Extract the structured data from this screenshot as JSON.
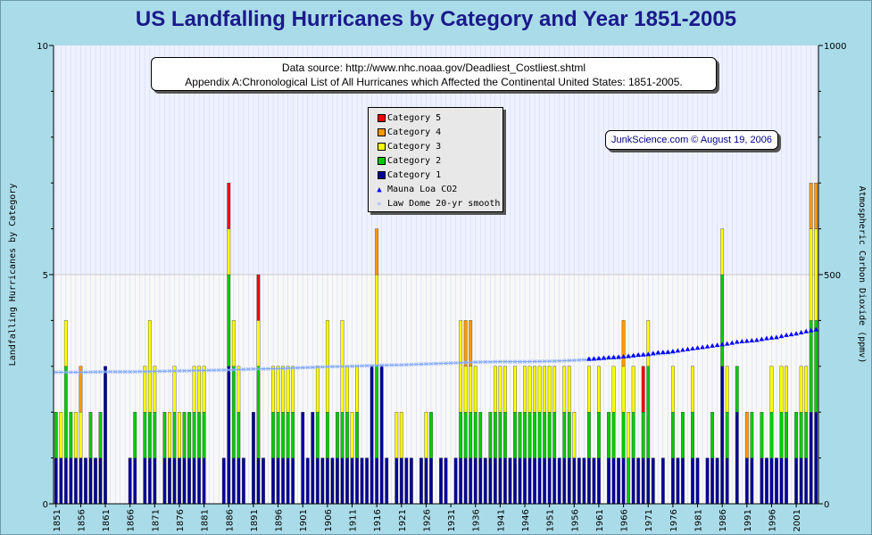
{
  "colors": {
    "category_5": "#ff0000",
    "category_4": "#ff9900",
    "category_3": "#ffff00",
    "category_2": "#00cc00",
    "category_1": "#000099",
    "mauna_loa": "#0000ff",
    "law_dome": "#7fa8ff",
    "upper_band": "#eef1ff",
    "lower_band": "#f8f8f8"
  },
  "source_box": {
    "line1": "Data source: http://www.nhc.noaa.gov/Deadliest_Costliest.shtml",
    "line2": "Appendix A:Chronological List of All Hurricanes which Affected the Continental United States: 1851-2005."
  },
  "credit": "JunkScience.com © August 19, 2006",
  "legend": {
    "items": [
      {
        "label": "Category 5",
        "color_key": "category_5",
        "kind": "swatch"
      },
      {
        "label": "Category 4",
        "color_key": "category_4",
        "kind": "swatch"
      },
      {
        "label": "Category 3",
        "color_key": "category_3",
        "kind": "swatch"
      },
      {
        "label": "Category 2",
        "color_key": "category_2",
        "kind": "swatch"
      },
      {
        "label": "Category 1",
        "color_key": "category_1",
        "kind": "swatch"
      },
      {
        "label": "Mauna Loa CO2",
        "color_key": "mauna_loa",
        "kind": "triangle"
      },
      {
        "label": "Law Dome 20-yr smooth",
        "color_key": "law_dome",
        "kind": "star"
      }
    ]
  },
  "chart_data": {
    "type": "bar",
    "title": "US Landfalling Hurricanes by Category and Year 1851-2005",
    "ylabel": "Landfalling Hurricanes by Category",
    "y2label": "Atmospheric Carbon Dioxide (ppmv)",
    "ylim": [
      0,
      10
    ],
    "y2lim": [
      0,
      1000
    ],
    "yticks": [
      "0",
      "5",
      "10"
    ],
    "y2ticks": [
      "0",
      "500",
      "1000"
    ],
    "stacked": true,
    "legend_position": "top-center",
    "x_tick_labels": [
      "1851",
      "1856",
      "1861",
      "1866",
      "1871",
      "1876",
      "1881",
      "1886",
      "1891",
      "1896",
      "1901",
      "1906",
      "1911",
      "1916",
      "1921",
      "1926",
      "1931",
      "1936",
      "1941",
      "1946",
      "1951",
      "1956",
      "1961",
      "1966",
      "1971",
      "1976",
      "1981",
      "1986",
      "1991",
      "1996",
      "2001"
    ],
    "years": [
      1851,
      1852,
      1853,
      1854,
      1855,
      1856,
      1857,
      1858,
      1859,
      1860,
      1861,
      1862,
      1863,
      1864,
      1865,
      1866,
      1867,
      1868,
      1869,
      1870,
      1871,
      1872,
      1873,
      1874,
      1875,
      1876,
      1877,
      1878,
      1879,
      1880,
      1881,
      1882,
      1883,
      1884,
      1885,
      1886,
      1887,
      1888,
      1889,
      1890,
      1891,
      1892,
      1893,
      1894,
      1895,
      1896,
      1897,
      1898,
      1899,
      1900,
      1901,
      1902,
      1903,
      1904,
      1905,
      1906,
      1907,
      1908,
      1909,
      1910,
      1911,
      1912,
      1913,
      1914,
      1915,
      1916,
      1917,
      1918,
      1919,
      1920,
      1921,
      1922,
      1923,
      1924,
      1925,
      1926,
      1927,
      1928,
      1929,
      1930,
      1931,
      1932,
      1933,
      1934,
      1935,
      1936,
      1937,
      1938,
      1939,
      1940,
      1941,
      1942,
      1943,
      1944,
      1945,
      1946,
      1947,
      1948,
      1949,
      1950,
      1951,
      1952,
      1953,
      1954,
      1955,
      1956,
      1957,
      1958,
      1959,
      1960,
      1961,
      1962,
      1963,
      1964,
      1965,
      1966,
      1967,
      1968,
      1969,
      1970,
      1971,
      1972,
      1973,
      1974,
      1975,
      1976,
      1977,
      1978,
      1979,
      1980,
      1981,
      1982,
      1983,
      1984,
      1985,
      1986,
      1987,
      1988,
      1989,
      1990,
      1991,
      1992,
      1993,
      1994,
      1995,
      1996,
      1997,
      1998,
      1999,
      2000,
      2001,
      2002,
      2003,
      2004,
      2005
    ],
    "series": [
      {
        "name": "Category 1",
        "color_key": "category_1",
        "values": [
          1,
          1,
          1,
          1,
          1,
          1,
          1,
          1,
          1,
          1,
          3,
          0,
          0,
          0,
          0,
          1,
          1,
          0,
          1,
          1,
          1,
          0,
          1,
          1,
          1,
          1,
          1,
          1,
          1,
          1,
          1,
          0,
          0,
          0,
          1,
          3,
          1,
          1,
          1,
          0,
          2,
          1,
          1,
          0,
          1,
          1,
          1,
          1,
          1,
          0,
          2,
          1,
          2,
          1,
          1,
          1,
          1,
          1,
          1,
          1,
          1,
          1,
          1,
          1,
          3,
          1,
          3,
          1,
          0,
          1,
          1,
          1,
          1,
          0,
          1,
          1,
          1,
          0,
          1,
          1,
          0,
          1,
          1,
          1,
          1,
          1,
          1,
          1,
          1,
          1,
          1,
          1,
          1,
          1,
          1,
          1,
          1,
          1,
          1,
          1,
          1,
          1,
          1,
          1,
          1,
          1,
          1,
          1,
          1,
          1,
          1,
          0,
          1,
          1,
          1,
          1,
          0,
          1,
          1,
          1,
          1,
          1,
          0,
          1,
          0,
          1,
          1,
          1,
          0,
          1,
          1,
          0,
          1,
          1,
          1,
          3,
          1,
          0,
          2,
          0,
          1,
          1,
          0,
          1,
          1,
          1,
          1,
          1,
          1,
          0,
          1,
          1,
          1,
          2,
          2
        ]
      },
      {
        "name": "Category 2",
        "color_key": "category_2",
        "values": [
          1,
          0,
          2,
          1,
          0,
          0,
          0,
          1,
          0,
          1,
          0,
          0,
          0,
          0,
          0,
          0,
          1,
          0,
          1,
          1,
          1,
          0,
          1,
          0,
          1,
          0,
          1,
          1,
          1,
          1,
          1,
          0,
          0,
          0,
          0,
          2,
          2,
          1,
          0,
          0,
          0,
          2,
          0,
          0,
          1,
          1,
          1,
          1,
          1,
          0,
          0,
          0,
          0,
          1,
          0,
          1,
          0,
          1,
          1,
          1,
          0,
          1,
          0,
          0,
          0,
          2,
          0,
          0,
          0,
          0,
          0,
          0,
          0,
          0,
          0,
          0,
          1,
          0,
          0,
          0,
          0,
          0,
          1,
          1,
          1,
          1,
          1,
          0,
          1,
          1,
          1,
          1,
          0,
          1,
          1,
          1,
          1,
          1,
          1,
          1,
          1,
          1,
          0,
          1,
          1,
          0,
          0,
          0,
          1,
          0,
          1,
          0,
          1,
          1,
          0,
          1,
          1,
          1,
          0,
          1,
          2,
          0,
          0,
          0,
          0,
          1,
          0,
          1,
          0,
          1,
          0,
          0,
          0,
          1,
          0,
          2,
          1,
          0,
          1,
          0,
          0,
          1,
          0,
          1,
          0,
          1,
          0,
          1,
          1,
          0,
          1,
          1,
          1,
          2,
          2
        ]
      },
      {
        "name": "Category 3",
        "color_key": "category_3",
        "values": [
          0,
          1,
          1,
          0,
          1,
          1,
          0,
          0,
          0,
          0,
          0,
          0,
          0,
          0,
          0,
          0,
          0,
          0,
          1,
          2,
          1,
          0,
          0,
          1,
          1,
          1,
          0,
          0,
          1,
          1,
          1,
          0,
          0,
          0,
          0,
          1,
          1,
          1,
          0,
          0,
          0,
          1,
          0,
          0,
          1,
          1,
          1,
          1,
          1,
          0,
          0,
          0,
          0,
          1,
          0,
          2,
          0,
          0,
          2,
          1,
          1,
          1,
          0,
          0,
          0,
          2,
          0,
          0,
          0,
          1,
          1,
          0,
          0,
          0,
          0,
          1,
          0,
          0,
          0,
          0,
          0,
          0,
          2,
          1,
          1,
          1,
          0,
          0,
          0,
          1,
          1,
          1,
          0,
          1,
          0,
          1,
          1,
          1,
          1,
          1,
          1,
          1,
          0,
          1,
          1,
          1,
          0,
          0,
          1,
          0,
          1,
          0,
          0,
          1,
          0,
          1,
          1,
          1,
          0,
          0,
          1,
          0,
          0,
          0,
          0,
          1,
          0,
          0,
          0,
          1,
          0,
          0,
          0,
          0,
          0,
          1,
          1,
          0,
          0,
          0,
          0,
          0,
          0,
          0,
          0,
          1,
          0,
          1,
          1,
          0,
          0,
          1,
          1,
          2,
          2
        ]
      },
      {
        "name": "Category 4",
        "color_key": "category_4",
        "values": [
          0,
          0,
          0,
          0,
          0,
          1,
          0,
          0,
          0,
          0,
          0,
          0,
          0,
          0,
          0,
          0,
          0,
          0,
          0,
          0,
          0,
          0,
          0,
          0,
          0,
          0,
          0,
          0,
          0,
          0,
          0,
          0,
          0,
          0,
          0,
          0,
          0,
          0,
          0,
          0,
          0,
          0,
          0,
          0,
          0,
          0,
          0,
          0,
          0,
          0,
          0,
          0,
          0,
          0,
          0,
          0,
          0,
          0,
          0,
          0,
          0,
          0,
          0,
          0,
          0,
          1,
          0,
          0,
          0,
          0,
          0,
          0,
          0,
          0,
          0,
          0,
          0,
          0,
          0,
          0,
          0,
          0,
          0,
          1,
          1,
          0,
          0,
          0,
          0,
          0,
          0,
          0,
          0,
          0,
          0,
          0,
          0,
          0,
          0,
          0,
          0,
          0,
          0,
          0,
          0,
          0,
          0,
          0,
          0,
          0,
          0,
          0,
          0,
          0,
          0,
          1,
          0,
          0,
          0,
          0,
          0,
          0,
          0,
          0,
          0,
          0,
          0,
          0,
          0,
          0,
          0,
          0,
          0,
          0,
          0,
          0,
          0,
          0,
          0,
          0,
          1,
          0,
          0,
          0,
          0,
          0,
          0,
          0,
          0,
          0,
          0,
          0,
          0,
          1,
          1
        ]
      },
      {
        "name": "Category 5",
        "color_key": "category_5",
        "values": [
          0,
          0,
          0,
          0,
          0,
          0,
          0,
          0,
          0,
          0,
          0,
          0,
          0,
          0,
          0,
          0,
          0,
          0,
          0,
          0,
          0,
          0,
          0,
          0,
          0,
          0,
          0,
          0,
          0,
          0,
          0,
          0,
          0,
          0,
          0,
          1,
          0,
          0,
          0,
          0,
          0,
          1,
          0,
          0,
          0,
          0,
          0,
          0,
          0,
          0,
          0,
          0,
          0,
          0,
          0,
          0,
          0,
          0,
          0,
          0,
          0,
          0,
          0,
          0,
          0,
          0,
          0,
          0,
          0,
          0,
          0,
          0,
          0,
          0,
          0,
          0,
          0,
          0,
          0,
          0,
          0,
          0,
          0,
          0,
          0,
          0,
          0,
          0,
          0,
          0,
          0,
          0,
          0,
          0,
          0,
          0,
          0,
          0,
          0,
          0,
          0,
          0,
          0,
          0,
          0,
          0,
          0,
          0,
          0,
          0,
          0,
          0,
          0,
          0,
          0,
          0,
          0,
          0,
          0,
          1,
          0,
          0,
          0,
          0,
          0,
          0,
          0,
          0,
          0,
          0,
          0,
          0,
          0,
          0,
          0,
          0,
          0,
          0,
          0,
          0,
          0,
          0,
          0,
          0,
          0,
          0,
          0,
          0,
          0,
          0,
          0,
          0,
          0,
          0,
          0
        ]
      }
    ],
    "co2_law_dome": {
      "name": "Law Dome 20-yr smooth",
      "axis": "right",
      "years": [
        1851,
        1856,
        1861,
        1866,
        1871,
        1876,
        1881,
        1886,
        1891,
        1896,
        1901,
        1906,
        1911,
        1916,
        1921,
        1926,
        1931,
        1936,
        1941,
        1946,
        1951,
        1956,
        1961,
        1966,
        1971,
        1976
      ],
      "values": [
        287,
        287,
        288,
        288,
        289,
        290,
        291,
        292,
        294,
        295,
        297,
        299,
        300,
        302,
        303,
        305,
        307,
        309,
        310,
        310,
        311,
        313,
        316,
        320,
        325,
        330
      ]
    },
    "co2_mauna_loa": {
      "name": "Mauna Loa CO2",
      "axis": "right",
      "years": [
        1959,
        1961,
        1963,
        1965,
        1967,
        1969,
        1971,
        1973,
        1975,
        1977,
        1979,
        1981,
        1983,
        1985,
        1987,
        1989,
        1991,
        1993,
        1995,
        1997,
        1999,
        2001,
        2003,
        2005
      ],
      "values": [
        316,
        317,
        319,
        320,
        322,
        325,
        326,
        330,
        331,
        334,
        337,
        340,
        343,
        346,
        349,
        353,
        355,
        357,
        361,
        363,
        368,
        371,
        376,
        380
      ]
    }
  }
}
